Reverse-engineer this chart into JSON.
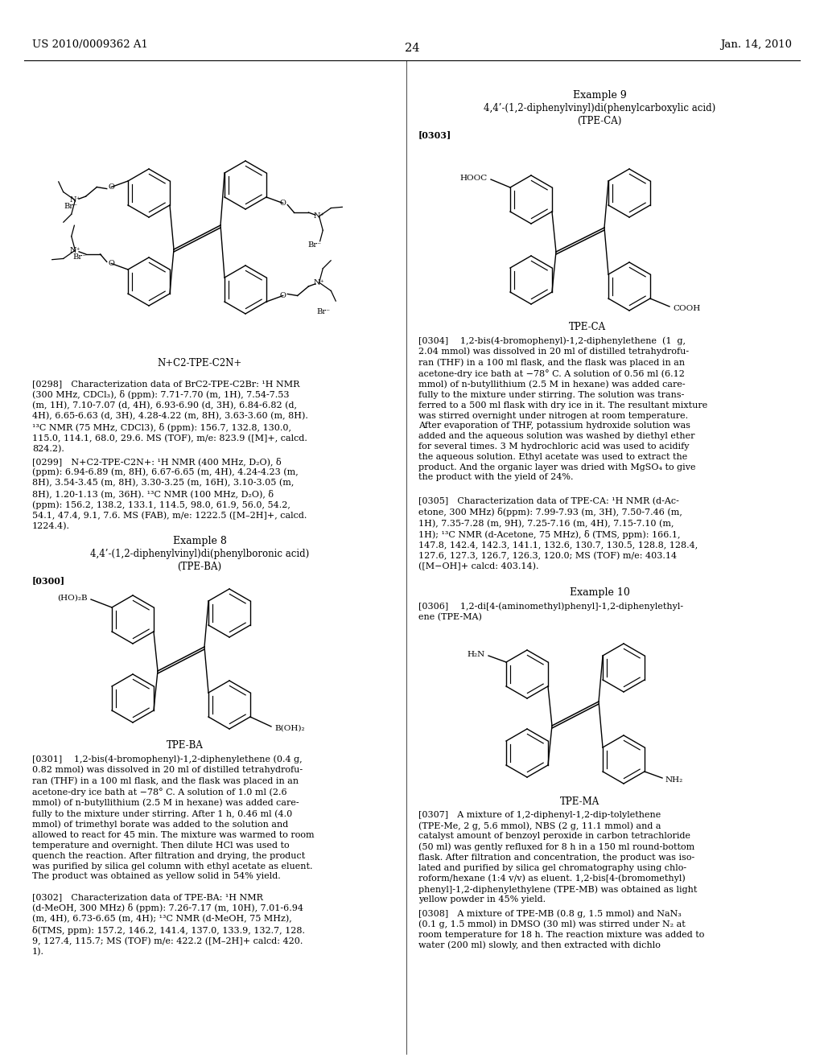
{
  "background_color": "#ffffff",
  "page_number": "24",
  "left_header": "US 2010/0009362 A1",
  "right_header": "Jan. 14, 2010",
  "fs_body": 8.0,
  "fs_bold_tag": 8.0,
  "fs_label": 8.5,
  "fs_header": 9.5,
  "fs_title": 9.0,
  "p0298": "[0298] Characterization data of BrC2-TPE-C2Br: ¹H NMR\n(300 MHz, CDCl₃), δ (ppm): 7.71-7.70 (m, 1H), 7.54-7.53\n(m, 1H), 7.10-7.07 (d, 4H), 6.93-6.90 (d, 3H), 6.84-6.82 (d,\n4H), 6.65-6.63 (d, 3H), 4.28-4.22 (m, 8H), 3.63-3.60 (m, 8H).\n¹³C NMR (75 MHz, CDCl3), δ (ppm): 156.7, 132.8, 130.0,\n115.0, 114.1, 68.0, 29.6. MS (TOF), m/e: 823.9 ([M]+, calcd.\n824.2).",
  "p0299": "[0299] N+C2-TPE-C2N+: ¹H NMR (400 MHz, D₂O), δ\n(ppm): 6.94-6.89 (m, 8H), 6.67-6.65 (m, 4H), 4.24-4.23 (m,\n8H), 3.54-3.45 (m, 8H), 3.30-3.25 (m, 16H), 3.10-3.05 (m,\n8H), 1.20-1.13 (m, 36H). ¹³C NMR (100 MHz, D₂O), δ\n(ppm): 156.2, 138.2, 133.1, 114.5, 98.0, 61.9, 56.0, 54.2,\n54.1, 47.4, 9.1, 7.6. MS (FAB), m/e: 1222.5 ([M–2H]+, calcd.\n1224.4).",
  "ex8_title": "Example 8",
  "ex8_sub1": "4,4’-(1,2-diphenylvinyl)di(phenylboronic acid)",
  "ex8_sub2": "(TPE-BA)",
  "ex8_tag": "[0300]",
  "ex8_label": "TPE-BA",
  "p0301": "[0301]  1,2-bis(4-bromophenyl)-1,2-diphenylethene (0.4 g,\n0.82 mmol) was dissolved in 20 ml of distilled tetrahydrofu-\nran (THF) in a 100 ml flask, and the flask was placed in an\nacetone-dry ice bath at −78° C. A solution of 1.0 ml (2.6\nmmol) of n-butyllithium (2.5 M in hexane) was added care-\nfully to the mixture under stirring. After 1 h, 0.46 ml (4.0\nmmol) of trimethyl borate was added to the solution and\nallowed to react for 45 min. The mixture was warmed to room\ntemperature and overnight. Then dilute HCl was used to\nquench the reaction. After filtration and drying, the product\nwas purified by silica gel column with ethyl acetate as eluent.\nThe product was obtained as yellow solid in 54% yield.",
  "p0302": "[0302] Characterization data of TPE-BA: ¹H NMR\n(d-MeOH, 300 MHz) δ (ppm): 7.26-7.17 (m, 10H), 7.01-6.94\n(m, 4H), 6.73-6.65 (m, 4H); ¹³C NMR (d-MeOH, 75 MHz),\nδ(TMS, ppm): 157.2, 146.2, 141.4, 137.0, 133.9, 132.7, 128.\n9, 127.4, 115.7; MS (TOF) m/e: 422.2 ([M–2H]+ calcd: 420.\n1).",
  "ex9_title": "Example 9",
  "ex9_sub1": "4,4’-(1,2-diphenylvinyl)di(phenylcarboxylic acid)",
  "ex9_sub2": "(TPE-CA)",
  "ex9_tag": "[0303]",
  "ex9_label": "TPE-CA",
  "p0304": "[0304]  1,2-bis(4-bromophenyl)-1,2-diphenylethene  (1  g,\n2.04 mmol) was dissolved in 20 ml of distilled tetrahydrofu-\nran (THF) in a 100 ml flask, and the flask was placed in an\nacetone-dry ice bath at −78° C. A solution of 0.56 ml (6.12\nmmol) of n-butyllithium (2.5 M in hexane) was added care-\nfully to the mixture under stirring. The solution was trans-\nferred to a 500 ml flask with dry ice in it. The resultant mixture\nwas stirred overnight under nitrogen at room temperature.\nAfter evaporation of THF, potassium hydroxide solution was\nadded and the aqueous solution was washed by diethyl ether\nfor several times. 3 M hydrochloric acid was used to acidify\nthe aqueous solution. Ethyl acetate was used to extract the\nproduct. And the organic layer was dried with MgSO₄ to give\nthe product with the yield of 24%.",
  "p0305": "[0305] Characterization data of TPE-CA: ¹H NMR (d-Ac-\netone, 300 MHz) δ(ppm): 7.99-7.93 (m, 3H), 7.50-7.46 (m,\n1H), 7.35-7.28 (m, 9H), 7.25-7.16 (m, 4H), 7.15-7.10 (m,\n1H); ¹³C NMR (d-Acetone, 75 MHz), δ (TMS, ppm): 166.1,\n147.8, 142.4, 142.3, 141.1, 132.6, 130.7, 130.5, 128.8, 128.4,\n127.6, 127.3, 126.7, 126.3, 120.0; MS (TOF) m/e: 403.14\n([M−OH]+ calcd: 403.14).",
  "ex10_title": "Example 10",
  "ex10_tag": "[0306]",
  "p0306": "[0306]  1,2-di[4-(aminomethyl)phenyl]-1,2-diphenylethyl-\nene (TPE-MA)",
  "ex10_label": "TPE-MA",
  "p0307": "[0307] A mixture of 1,2-diphenyl-1,2-dip-tolylethene\n(TPE-Me, 2 g, 5.6 mmol), NBS (2 g, 11.1 mmol) and a\ncatalyst amount of benzoyl peroxide in carbon tetrachloride\n(50 ml) was gently refluxed for 8 h in a 150 ml round-bottom\nflask. After filtration and concentration, the product was iso-\nlated and purified by silica gel chromatography using chlo-\nroform/hexane (1:4 v/v) as eluent. 1,2-bis[4-(bromomethyl)\nphenyl]-1,2-diphenylethylene (TPE-MB) was obtained as light\nyellow powder in 45% yield.",
  "p0308": "[0308] A mixture of TPE-MB (0.8 g, 1.5 mmol) and NaN₃\n(0.1 g, 1.5 mmol) in DMSO (30 ml) was stirred under N₂ at\nroom temperature for 18 h. The reaction mixture was added to\nwater (200 ml) slowly, and then extracted with dichlo"
}
